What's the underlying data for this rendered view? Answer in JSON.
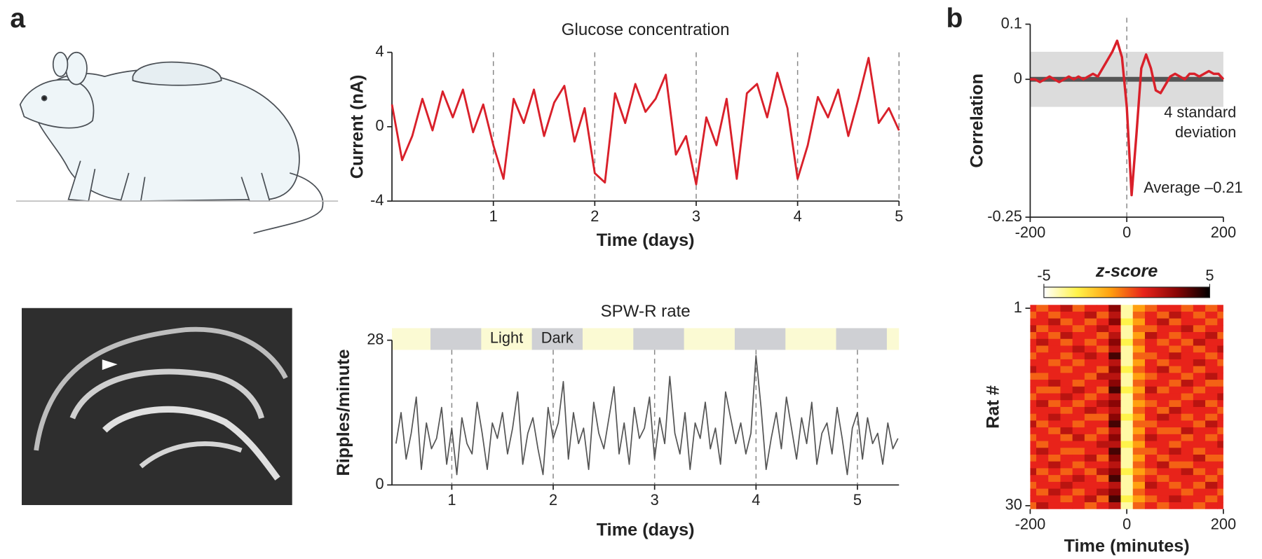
{
  "panels": [
    "a",
    "b"
  ],
  "chart_data": [
    {
      "type": "line",
      "title": "Glucose concentration",
      "x_label": "Time (days)",
      "y_label": "Current (nA)",
      "x": [
        0,
        0.1,
        0.2,
        0.3,
        0.4,
        0.5,
        0.6,
        0.7,
        0.8,
        0.9,
        1,
        1.1,
        1.2,
        1.3,
        1.4,
        1.5,
        1.6,
        1.7,
        1.8,
        1.9,
        2,
        2.1,
        2.2,
        2.3,
        2.4,
        2.5,
        2.6,
        2.7,
        2.8,
        2.9,
        3,
        3.1,
        3.2,
        3.3,
        3.4,
        3.5,
        3.6,
        3.7,
        3.8,
        3.9,
        4,
        4.1,
        4.2,
        4.3,
        4.4,
        4.5,
        4.6,
        4.7,
        4.8,
        4.9,
        5
      ],
      "values": [
        1.2,
        -1.8,
        -0.5,
        1.5,
        -0.2,
        1.9,
        0.5,
        2,
        -0.3,
        1.2,
        -1,
        -2.8,
        1.5,
        0.2,
        2,
        -0.5,
        1.3,
        2.2,
        -0.8,
        1,
        -2.5,
        -3,
        1.8,
        0.2,
        2.3,
        0.8,
        1.5,
        2.8,
        -1.5,
        -0.5,
        -3.1,
        0.5,
        -1,
        1.5,
        -2.8,
        1.8,
        2.3,
        0.5,
        2.9,
        1,
        -2.8,
        -1,
        1.6,
        0.5,
        2,
        -0.5,
        1.5,
        3.7,
        0.2,
        1,
        -0.2
      ],
      "color": "#d9202a",
      "xlim": [
        0,
        5
      ],
      "xticks": [
        1,
        2,
        3,
        4,
        5
      ],
      "ylim": [
        -4,
        4
      ],
      "yticks": [
        -4,
        0,
        4
      ],
      "grid": true
    },
    {
      "type": "line",
      "title": "SPW-R rate",
      "x_label": "Time (days)",
      "y_label": "Ripples/minute",
      "x": [
        0.45,
        0.5,
        0.55,
        0.6,
        0.65,
        0.7,
        0.75,
        0.8,
        0.85,
        0.9,
        0.95,
        1,
        1.05,
        1.1,
        1.15,
        1.2,
        1.25,
        1.3,
        1.35,
        1.4,
        1.45,
        1.5,
        1.55,
        1.6,
        1.65,
        1.7,
        1.75,
        1.8,
        1.85,
        1.9,
        1.95,
        2,
        2.05,
        2.1,
        2.15,
        2.2,
        2.25,
        2.3,
        2.35,
        2.4,
        2.45,
        2.5,
        2.55,
        2.6,
        2.65,
        2.7,
        2.75,
        2.8,
        2.85,
        2.9,
        2.95,
        3,
        3.05,
        3.1,
        3.15,
        3.2,
        3.25,
        3.3,
        3.35,
        3.4,
        3.45,
        3.5,
        3.55,
        3.6,
        3.65,
        3.7,
        3.75,
        3.8,
        3.85,
        3.9,
        3.95,
        4,
        4.05,
        4.1,
        4.15,
        4.2,
        4.25,
        4.3,
        4.35,
        4.4,
        4.45,
        4.5,
        4.55,
        4.6,
        4.65,
        4.7,
        4.75,
        4.8,
        4.85,
        4.9,
        4.95,
        5,
        5.05,
        5.1,
        5.15,
        5.2,
        5.25,
        5.3,
        5.35,
        5.4
      ],
      "values": [
        8,
        14,
        5,
        10,
        17,
        3,
        12,
        7,
        9,
        15,
        4,
        11,
        2,
        13,
        8,
        6,
        16,
        10,
        3,
        12,
        9,
        14,
        6,
        11,
        18,
        4,
        10,
        13,
        7,
        2,
        15,
        9,
        12,
        20,
        5,
        14,
        8,
        11,
        3,
        16,
        10,
        7,
        13,
        19,
        6,
        12,
        4,
        15,
        9,
        11,
        17,
        5,
        13,
        8,
        21,
        10,
        6,
        14,
        3,
        12,
        9,
        16,
        7,
        11,
        4,
        18,
        13,
        8,
        12,
        6,
        10,
        25,
        15,
        3,
        9,
        14,
        7,
        17,
        11,
        5,
        13,
        8,
        16,
        4,
        10,
        12,
        6,
        15,
        9,
        2,
        11,
        14,
        5,
        13,
        8,
        10,
        4,
        12,
        7,
        9
      ],
      "color": "#555555",
      "xlim": [
        0.41,
        5.41
      ],
      "xticks": [
        1,
        2,
        3,
        4,
        5
      ],
      "ylim": [
        0,
        28
      ],
      "yticks": [
        0,
        28
      ],
      "grid": true,
      "dark_periods": [
        [
          0.79,
          1.29
        ],
        [
          1.79,
          2.29
        ],
        [
          2.79,
          3.29
        ],
        [
          3.79,
          4.29
        ],
        [
          4.79,
          5.29
        ]
      ],
      "light_label": "Light",
      "dark_label": "Dark",
      "light_color": "#fbfad3",
      "dark_color": "#cfd0d4"
    },
    {
      "type": "line",
      "y_label": "Correlation",
      "x": [
        -200,
        -190,
        -180,
        -170,
        -160,
        -150,
        -140,
        -130,
        -120,
        -110,
        -100,
        -90,
        -80,
        -70,
        -60,
        -50,
        -40,
        -30,
        -20,
        -10,
        0,
        10,
        20,
        30,
        40,
        50,
        60,
        70,
        80,
        90,
        100,
        110,
        120,
        130,
        140,
        150,
        160,
        170,
        180,
        190,
        200
      ],
      "values": [
        0,
        0,
        -0.005,
        0,
        0.005,
        0,
        -0.005,
        0,
        0.005,
        0,
        0.005,
        0,
        0.005,
        0.01,
        0.005,
        0.02,
        0.035,
        0.05,
        0.07,
        0.04,
        -0.05,
        -0.21,
        -0.1,
        0.02,
        0.045,
        0.02,
        -0.02,
        -0.025,
        -0.01,
        0.005,
        0.01,
        0.005,
        0,
        0.01,
        0.01,
        0.005,
        0.01,
        0.015,
        0.01,
        0.01,
        0
      ],
      "color": "#d9202a",
      "xlim": [
        -200,
        200
      ],
      "xticks": [
        -200,
        0,
        200
      ],
      "ylim": [
        -0.25,
        0.1
      ],
      "yticks": [
        -0.25,
        0,
        0.1
      ],
      "band": [
        -0.05,
        0.05
      ],
      "band_color": "#dcdcdc",
      "reference_line": 0,
      "vline": 0,
      "annotations": [
        "4 standard",
        "deviation",
        "Average –0.21"
      ]
    },
    {
      "type": "heatmap",
      "x_label": "Time (minutes)",
      "y_label": "Rat #",
      "colorbar_label": "z-score",
      "x": [
        -200,
        -175,
        -150,
        -125,
        -100,
        -75,
        -50,
        -25,
        0,
        25,
        50,
        75,
        100,
        125,
        150,
        175,
        200
      ],
      "xlim": [
        -200,
        200
      ],
      "xticks": [
        -200,
        0,
        200
      ],
      "ylim": [
        30.5,
        0.5
      ],
      "yticks": [
        1,
        30
      ],
      "clim": [
        -5,
        5
      ],
      "cticks": [
        -5,
        5
      ],
      "colormap": [
        "#ffffff",
        "#fff34a",
        "#ffa010",
        "#e8231a",
        "#8a0505",
        "#000000"
      ],
      "z": [
        [
          1,
          0,
          1,
          2,
          0,
          1,
          1,
          3,
          -4,
          -1,
          0,
          1,
          1,
          0,
          1,
          0,
          1
        ],
        [
          0,
          1,
          0,
          1,
          1,
          2,
          0,
          2,
          -4,
          0,
          1,
          0,
          2,
          1,
          0,
          1,
          0
        ],
        [
          1,
          1,
          2,
          0,
          1,
          0,
          1,
          3,
          -3,
          -1,
          1,
          2,
          0,
          1,
          1,
          0,
          1
        ],
        [
          2,
          0,
          1,
          1,
          0,
          1,
          2,
          1,
          -4,
          0,
          0,
          1,
          1,
          2,
          0,
          1,
          1
        ],
        [
          0,
          1,
          0,
          2,
          1,
          1,
          0,
          2,
          -4,
          -1,
          2,
          1,
          0,
          1,
          1,
          2,
          0
        ],
        [
          1,
          2,
          1,
          0,
          1,
          0,
          1,
          3,
          -3,
          0,
          1,
          0,
          1,
          0,
          2,
          1,
          1
        ],
        [
          1,
          0,
          1,
          1,
          2,
          1,
          0,
          2,
          -4,
          -1,
          1,
          1,
          0,
          1,
          0,
          1,
          2
        ],
        [
          0,
          1,
          1,
          0,
          1,
          2,
          1,
          4,
          -4,
          0,
          0,
          1,
          2,
          1,
          1,
          0,
          1
        ],
        [
          1,
          1,
          0,
          1,
          0,
          1,
          1,
          2,
          -4,
          -1,
          1,
          0,
          1,
          1,
          2,
          1,
          0
        ],
        [
          2,
          1,
          1,
          0,
          1,
          1,
          0,
          3,
          -3,
          0,
          1,
          2,
          0,
          1,
          0,
          1,
          1
        ],
        [
          0,
          0,
          1,
          1,
          1,
          0,
          2,
          2,
          -4,
          -1,
          0,
          1,
          1,
          0,
          1,
          2,
          1
        ],
        [
          1,
          1,
          2,
          1,
          0,
          1,
          1,
          3,
          -4,
          0,
          1,
          1,
          0,
          2,
          1,
          0,
          0
        ],
        [
          1,
          0,
          0,
          1,
          2,
          1,
          0,
          4,
          -3,
          -1,
          2,
          0,
          1,
          1,
          0,
          1,
          1
        ],
        [
          0,
          1,
          1,
          2,
          1,
          0,
          1,
          2,
          -4,
          0,
          1,
          1,
          1,
          0,
          1,
          1,
          2
        ],
        [
          1,
          2,
          0,
          1,
          0,
          1,
          2,
          3,
          -4,
          -1,
          0,
          1,
          0,
          1,
          2,
          0,
          1
        ],
        [
          1,
          1,
          1,
          0,
          1,
          2,
          1,
          2,
          -4,
          0,
          1,
          0,
          2,
          1,
          1,
          1,
          0
        ],
        [
          0,
          1,
          2,
          1,
          1,
          0,
          0,
          3,
          -3,
          -1,
          1,
          2,
          1,
          0,
          1,
          0,
          1
        ],
        [
          2,
          0,
          1,
          1,
          0,
          1,
          1,
          4,
          -4,
          0,
          0,
          1,
          1,
          1,
          0,
          2,
          1
        ],
        [
          1,
          1,
          0,
          2,
          1,
          1,
          0,
          2,
          -4,
          -1,
          1,
          0,
          0,
          2,
          1,
          1,
          0
        ],
        [
          0,
          1,
          1,
          0,
          2,
          0,
          1,
          3,
          -4,
          0,
          2,
          1,
          1,
          0,
          1,
          0,
          1
        ],
        [
          1,
          0,
          1,
          1,
          1,
          1,
          2,
          2,
          -3,
          -1,
          1,
          1,
          0,
          1,
          1,
          1,
          2
        ],
        [
          1,
          2,
          1,
          0,
          0,
          1,
          1,
          4,
          -4,
          0,
          0,
          1,
          2,
          1,
          0,
          1,
          1
        ],
        [
          0,
          1,
          0,
          1,
          1,
          2,
          0,
          3,
          -4,
          -1,
          1,
          0,
          1,
          1,
          2,
          0,
          0
        ],
        [
          1,
          1,
          2,
          1,
          0,
          1,
          1,
          2,
          -4,
          0,
          1,
          2,
          0,
          0,
          1,
          1,
          1
        ],
        [
          2,
          0,
          1,
          0,
          1,
          0,
          2,
          3,
          -3,
          -1,
          0,
          1,
          1,
          2,
          0,
          1,
          0
        ],
        [
          1,
          1,
          0,
          1,
          2,
          1,
          0,
          4,
          -4,
          0,
          1,
          0,
          1,
          1,
          1,
          0,
          1
        ],
        [
          0,
          1,
          1,
          2,
          1,
          1,
          1,
          2,
          -4,
          -1,
          2,
          1,
          0,
          1,
          0,
          2,
          1
        ],
        [
          1,
          0,
          2,
          1,
          0,
          1,
          2,
          3,
          -4,
          0,
          1,
          1,
          1,
          0,
          1,
          1,
          0
        ],
        [
          1,
          1,
          1,
          0,
          1,
          2,
          0,
          4,
          -3,
          -1,
          0,
          1,
          2,
          1,
          1,
          0,
          1
        ],
        [
          0,
          2,
          1,
          1,
          1,
          0,
          1,
          2,
          -4,
          0,
          1,
          0,
          1,
          1,
          0,
          1,
          1
        ]
      ]
    }
  ]
}
